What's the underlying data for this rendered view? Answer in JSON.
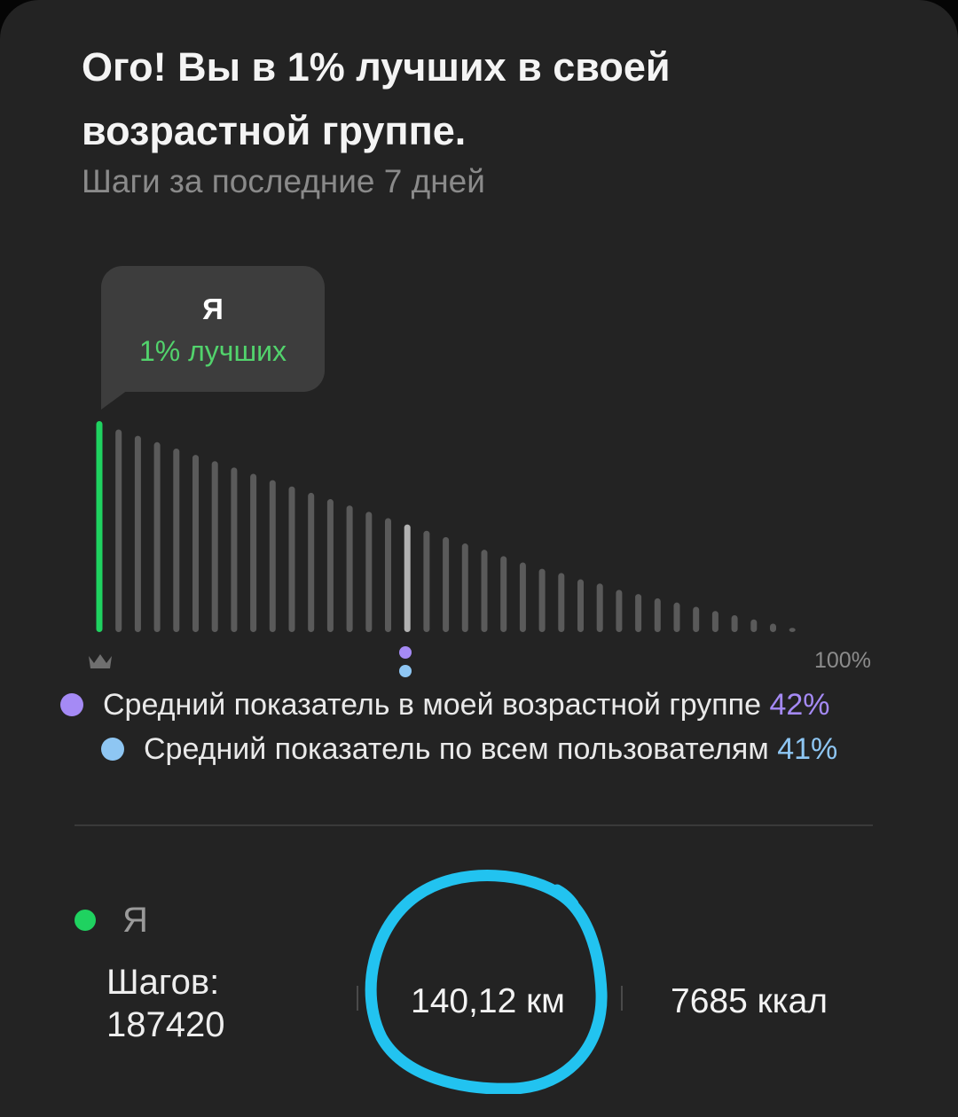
{
  "header": {
    "title": "Ого! Вы в 1% лучших в своей возрастной группе.",
    "subtitle": "Шаги за последние 7 дней"
  },
  "tooltip": {
    "label": "Я",
    "rank": "1% лучших"
  },
  "chart_data": {
    "type": "bar",
    "bars": [
      100,
      96,
      93,
      90,
      87,
      84,
      81,
      78,
      75,
      72,
      69,
      66,
      63,
      60,
      57,
      54,
      51,
      48,
      45,
      42,
      39,
      36,
      33,
      30,
      28,
      25,
      23,
      20,
      18,
      16,
      14,
      12,
      10,
      8,
      6,
      4,
      2
    ],
    "highlight_index": 0,
    "marker_index": 16,
    "axis_end_label": "100%",
    "colors": {
      "me": "#1fd260",
      "bar": "#5a5a5a",
      "marker_bar": "#b2b2b2",
      "age_group": "#a58af5",
      "all_users": "#8ec6f3"
    }
  },
  "legend": {
    "age_group": {
      "label": "Средний показатель в моей возрастной группе",
      "value": "42%"
    },
    "all_users": {
      "label": "Средний показатель по всем пользователям",
      "value": "41%"
    }
  },
  "stats": {
    "me_label": "Я",
    "steps_label": "Шагов:",
    "steps_value": "187420",
    "distance": "140,12 км",
    "calories": "7685 ккал"
  },
  "icons": {
    "crown": "crown-icon"
  }
}
